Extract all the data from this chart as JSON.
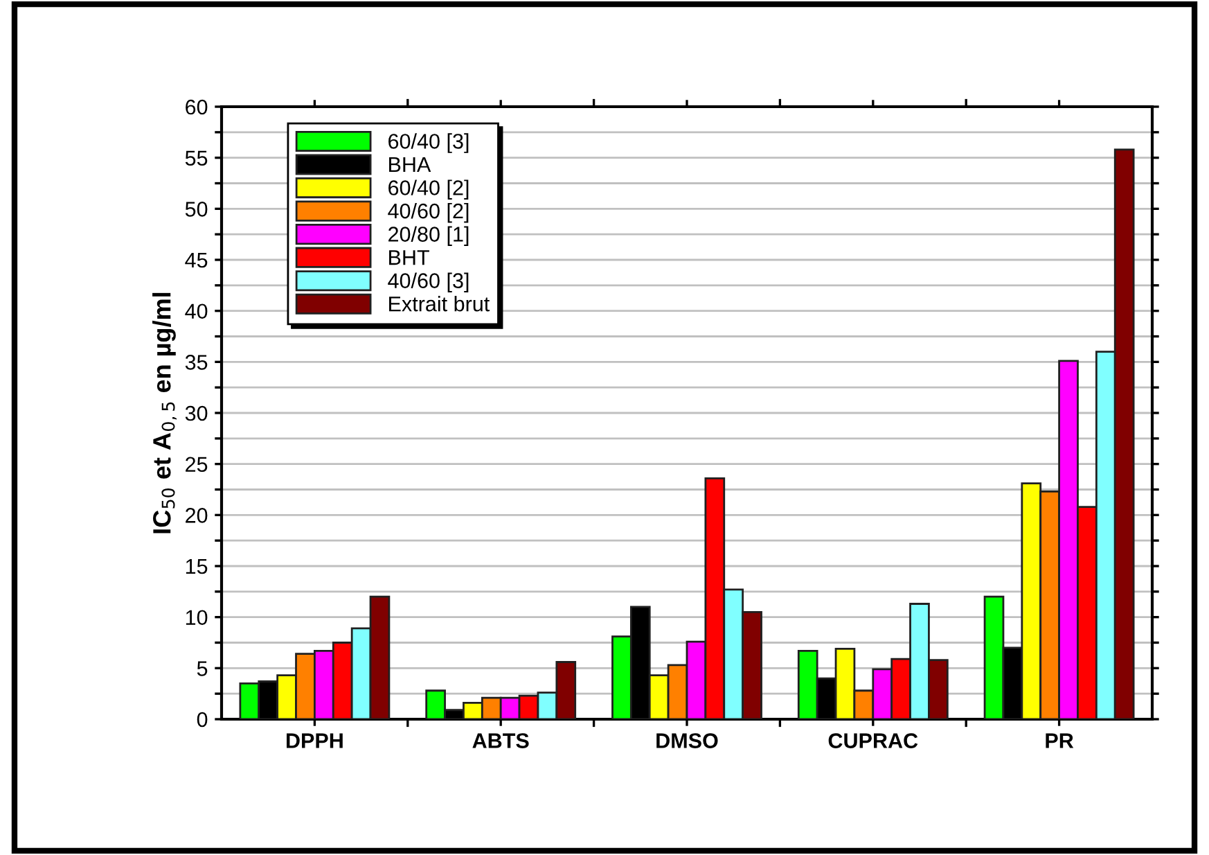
{
  "chart_data": {
    "type": "bar",
    "ylabel": "IC$_{50}$ et A$_{0,5}$ en µg/ml",
    "categories": [
      "DPPH",
      "ABTS",
      "DMSO",
      "CUPRAC",
      "PR"
    ],
    "series": [
      {
        "name": "60/40 [3]",
        "color": "#00ff00",
        "values": [
          3.5,
          2.8,
          8.1,
          6.7,
          12.0
        ]
      },
      {
        "name": "BHA",
        "color": "#000000",
        "values": [
          3.7,
          0.9,
          11.0,
          4.0,
          7.0
        ]
      },
      {
        "name": "60/40 [2]",
        "color": "#ffff00",
        "values": [
          4.3,
          1.6,
          4.3,
          6.9,
          23.1
        ]
      },
      {
        "name": "40/60 [2]",
        "color": "#ff8000",
        "values": [
          6.4,
          2.1,
          5.3,
          2.8,
          22.3
        ]
      },
      {
        "name": "20/80 [1]",
        "color": "#ff00ff",
        "values": [
          6.7,
          2.1,
          7.6,
          4.9,
          35.1
        ]
      },
      {
        "name": "BHT",
        "color": "#ff0000",
        "values": [
          7.5,
          2.3,
          23.6,
          5.9,
          20.8
        ]
      },
      {
        "name": "40/60 [3]",
        "color": "#80ffff",
        "values": [
          8.9,
          2.6,
          12.7,
          11.3,
          36.0
        ]
      },
      {
        "name": "Extrait brut",
        "color": "#800000",
        "values": [
          12.0,
          5.6,
          10.5,
          5.8,
          55.8
        ]
      }
    ],
    "ylim": [
      0,
      60
    ],
    "yticks": [
      0,
      {
        "value": 2.5,
        "label": null
      },
      5,
      {
        "value": 7.5,
        "label": null
      },
      10,
      {
        "value": 12.5,
        "label": null
      },
      15,
      {
        "value": 17.5,
        "label": null
      },
      20,
      {
        "value": 22.5,
        "label": null
      },
      25,
      {
        "value": 27.5,
        "label": null
      },
      30,
      {
        "value": 32.5,
        "label": null
      },
      35,
      {
        "value": 37.5,
        "label": null
      },
      40,
      {
        "value": 42.5,
        "label": null
      },
      45,
      {
        "value": 47.5,
        "label": null
      },
      50,
      {
        "value": 52.5,
        "label": null
      },
      55,
      {
        "value": 57.5,
        "label": null
      },
      60
    ],
    "grid": "y",
    "legend": "top left"
  }
}
